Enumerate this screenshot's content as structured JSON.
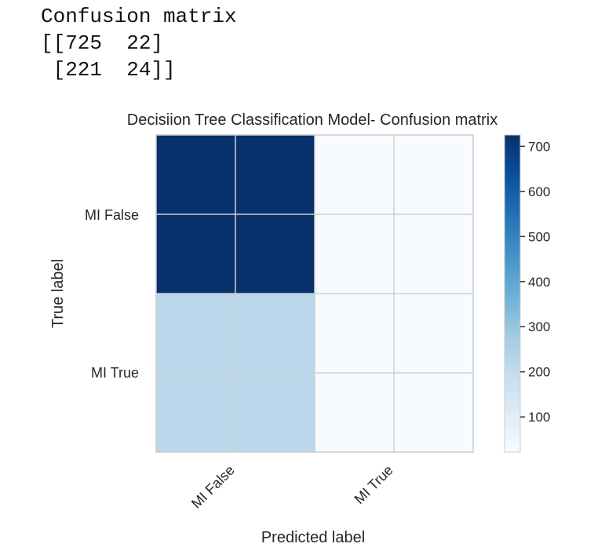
{
  "console": {
    "lines": [
      "Confusion matrix",
      "[[725  22]",
      " [221  24]]"
    ]
  },
  "chart_data": {
    "type": "heatmap",
    "title": "Decisiion Tree Classification Model- Confusion matrix",
    "xlabel": "Predicted label",
    "ylabel": "True label",
    "x_categories": [
      "MI False",
      "MI True"
    ],
    "y_categories": [
      "MI False",
      "MI True"
    ],
    "values": [
      [
        725,
        22
      ],
      [
        221,
        24
      ]
    ],
    "colormap": "Blues",
    "colorbar": {
      "ticks": [
        100,
        200,
        300,
        400,
        500,
        600,
        700
      ],
      "range": [
        22,
        725
      ]
    },
    "grid": true
  }
}
